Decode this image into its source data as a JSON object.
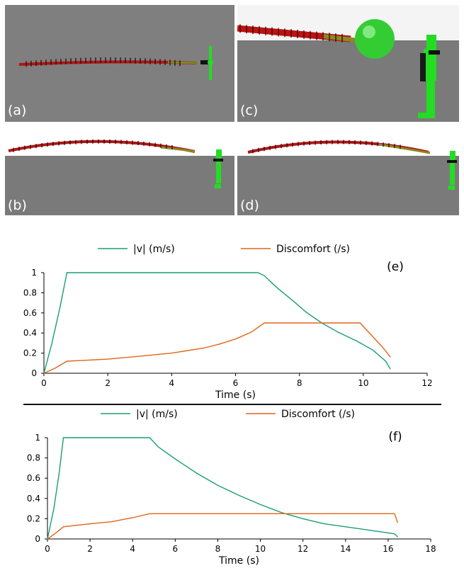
{
  "panels": [
    {
      "id": "a",
      "label": "(a)"
    },
    {
      "id": "b",
      "label": "(b)"
    },
    {
      "id": "c",
      "label": "(c)"
    },
    {
      "id": "d",
      "label": "(d)"
    }
  ],
  "colors": {
    "velocity": "#1a9e77",
    "discomfort": "#e0651a",
    "floor": "#7a7a7a",
    "sky": "#8c8c8c",
    "robot": "#22dd22",
    "chain": "#c01010",
    "obstacle": "#33cc33"
  },
  "chart_data": [
    {
      "type": "line",
      "panel_label": "(e)",
      "xlabel": "Time (s)",
      "ylabel": "",
      "xlim": [
        0,
        12
      ],
      "ylim": [
        0,
        1
      ],
      "xticks": [
        0,
        2,
        4,
        6,
        8,
        10,
        12
      ],
      "yticks": [
        0,
        0.2,
        0.4,
        0.6,
        0.8,
        1
      ],
      "legend_position": "top",
      "series": [
        {
          "name": "|v| (m/s)",
          "color": "#1a9e77",
          "x": [
            0,
            0.25,
            0.5,
            0.72,
            6.7,
            6.9,
            7.3,
            7.8,
            8.2,
            8.7,
            9.2,
            9.8,
            10.3,
            10.7,
            10.85
          ],
          "y": [
            0,
            0.3,
            0.65,
            1.0,
            1.0,
            0.97,
            0.85,
            0.72,
            0.61,
            0.5,
            0.41,
            0.32,
            0.23,
            0.12,
            0.04
          ]
        },
        {
          "name": "Discomfort (/s)",
          "color": "#e0651a",
          "x": [
            0,
            0.35,
            0.72,
            2.0,
            3.0,
            4.0,
            5.0,
            5.5,
            6.0,
            6.5,
            6.9,
            7.5,
            8.0,
            9.0,
            9.9,
            10.6,
            10.85
          ],
          "y": [
            0,
            0.05,
            0.12,
            0.14,
            0.17,
            0.2,
            0.25,
            0.29,
            0.34,
            0.41,
            0.5,
            0.5,
            0.5,
            0.5,
            0.5,
            0.26,
            0.16
          ]
        }
      ]
    },
    {
      "type": "line",
      "panel_label": "(f)",
      "xlabel": "Time (s)",
      "ylabel": "",
      "xlim": [
        0,
        18
      ],
      "ylim": [
        0,
        1
      ],
      "xticks": [
        0,
        2,
        4,
        6,
        8,
        10,
        12,
        14,
        16,
        18
      ],
      "yticks": [
        0,
        0.2,
        0.4,
        0.6,
        0.8,
        1
      ],
      "legend_position": "top",
      "series": [
        {
          "name": "|v| (m/s)",
          "color": "#1a9e77",
          "x": [
            0,
            0.3,
            0.55,
            0.75,
            4.8,
            5.2,
            6,
            7,
            8,
            9,
            10,
            11,
            12,
            13,
            14,
            15,
            16,
            16.3,
            16.45
          ],
          "y": [
            0,
            0.3,
            0.65,
            1.0,
            1.0,
            0.91,
            0.79,
            0.65,
            0.53,
            0.43,
            0.34,
            0.26,
            0.2,
            0.15,
            0.12,
            0.09,
            0.06,
            0.05,
            0.02
          ]
        },
        {
          "name": "Discomfort (/s)",
          "color": "#e0651a",
          "x": [
            0,
            0.4,
            0.75,
            2.0,
            3.0,
            4.0,
            4.8,
            6,
            8,
            10,
            12,
            14,
            16,
            16.3,
            16.45
          ],
          "y": [
            0,
            0.06,
            0.12,
            0.15,
            0.17,
            0.21,
            0.25,
            0.25,
            0.25,
            0.25,
            0.25,
            0.25,
            0.25,
            0.25,
            0.16
          ]
        }
      ]
    }
  ]
}
